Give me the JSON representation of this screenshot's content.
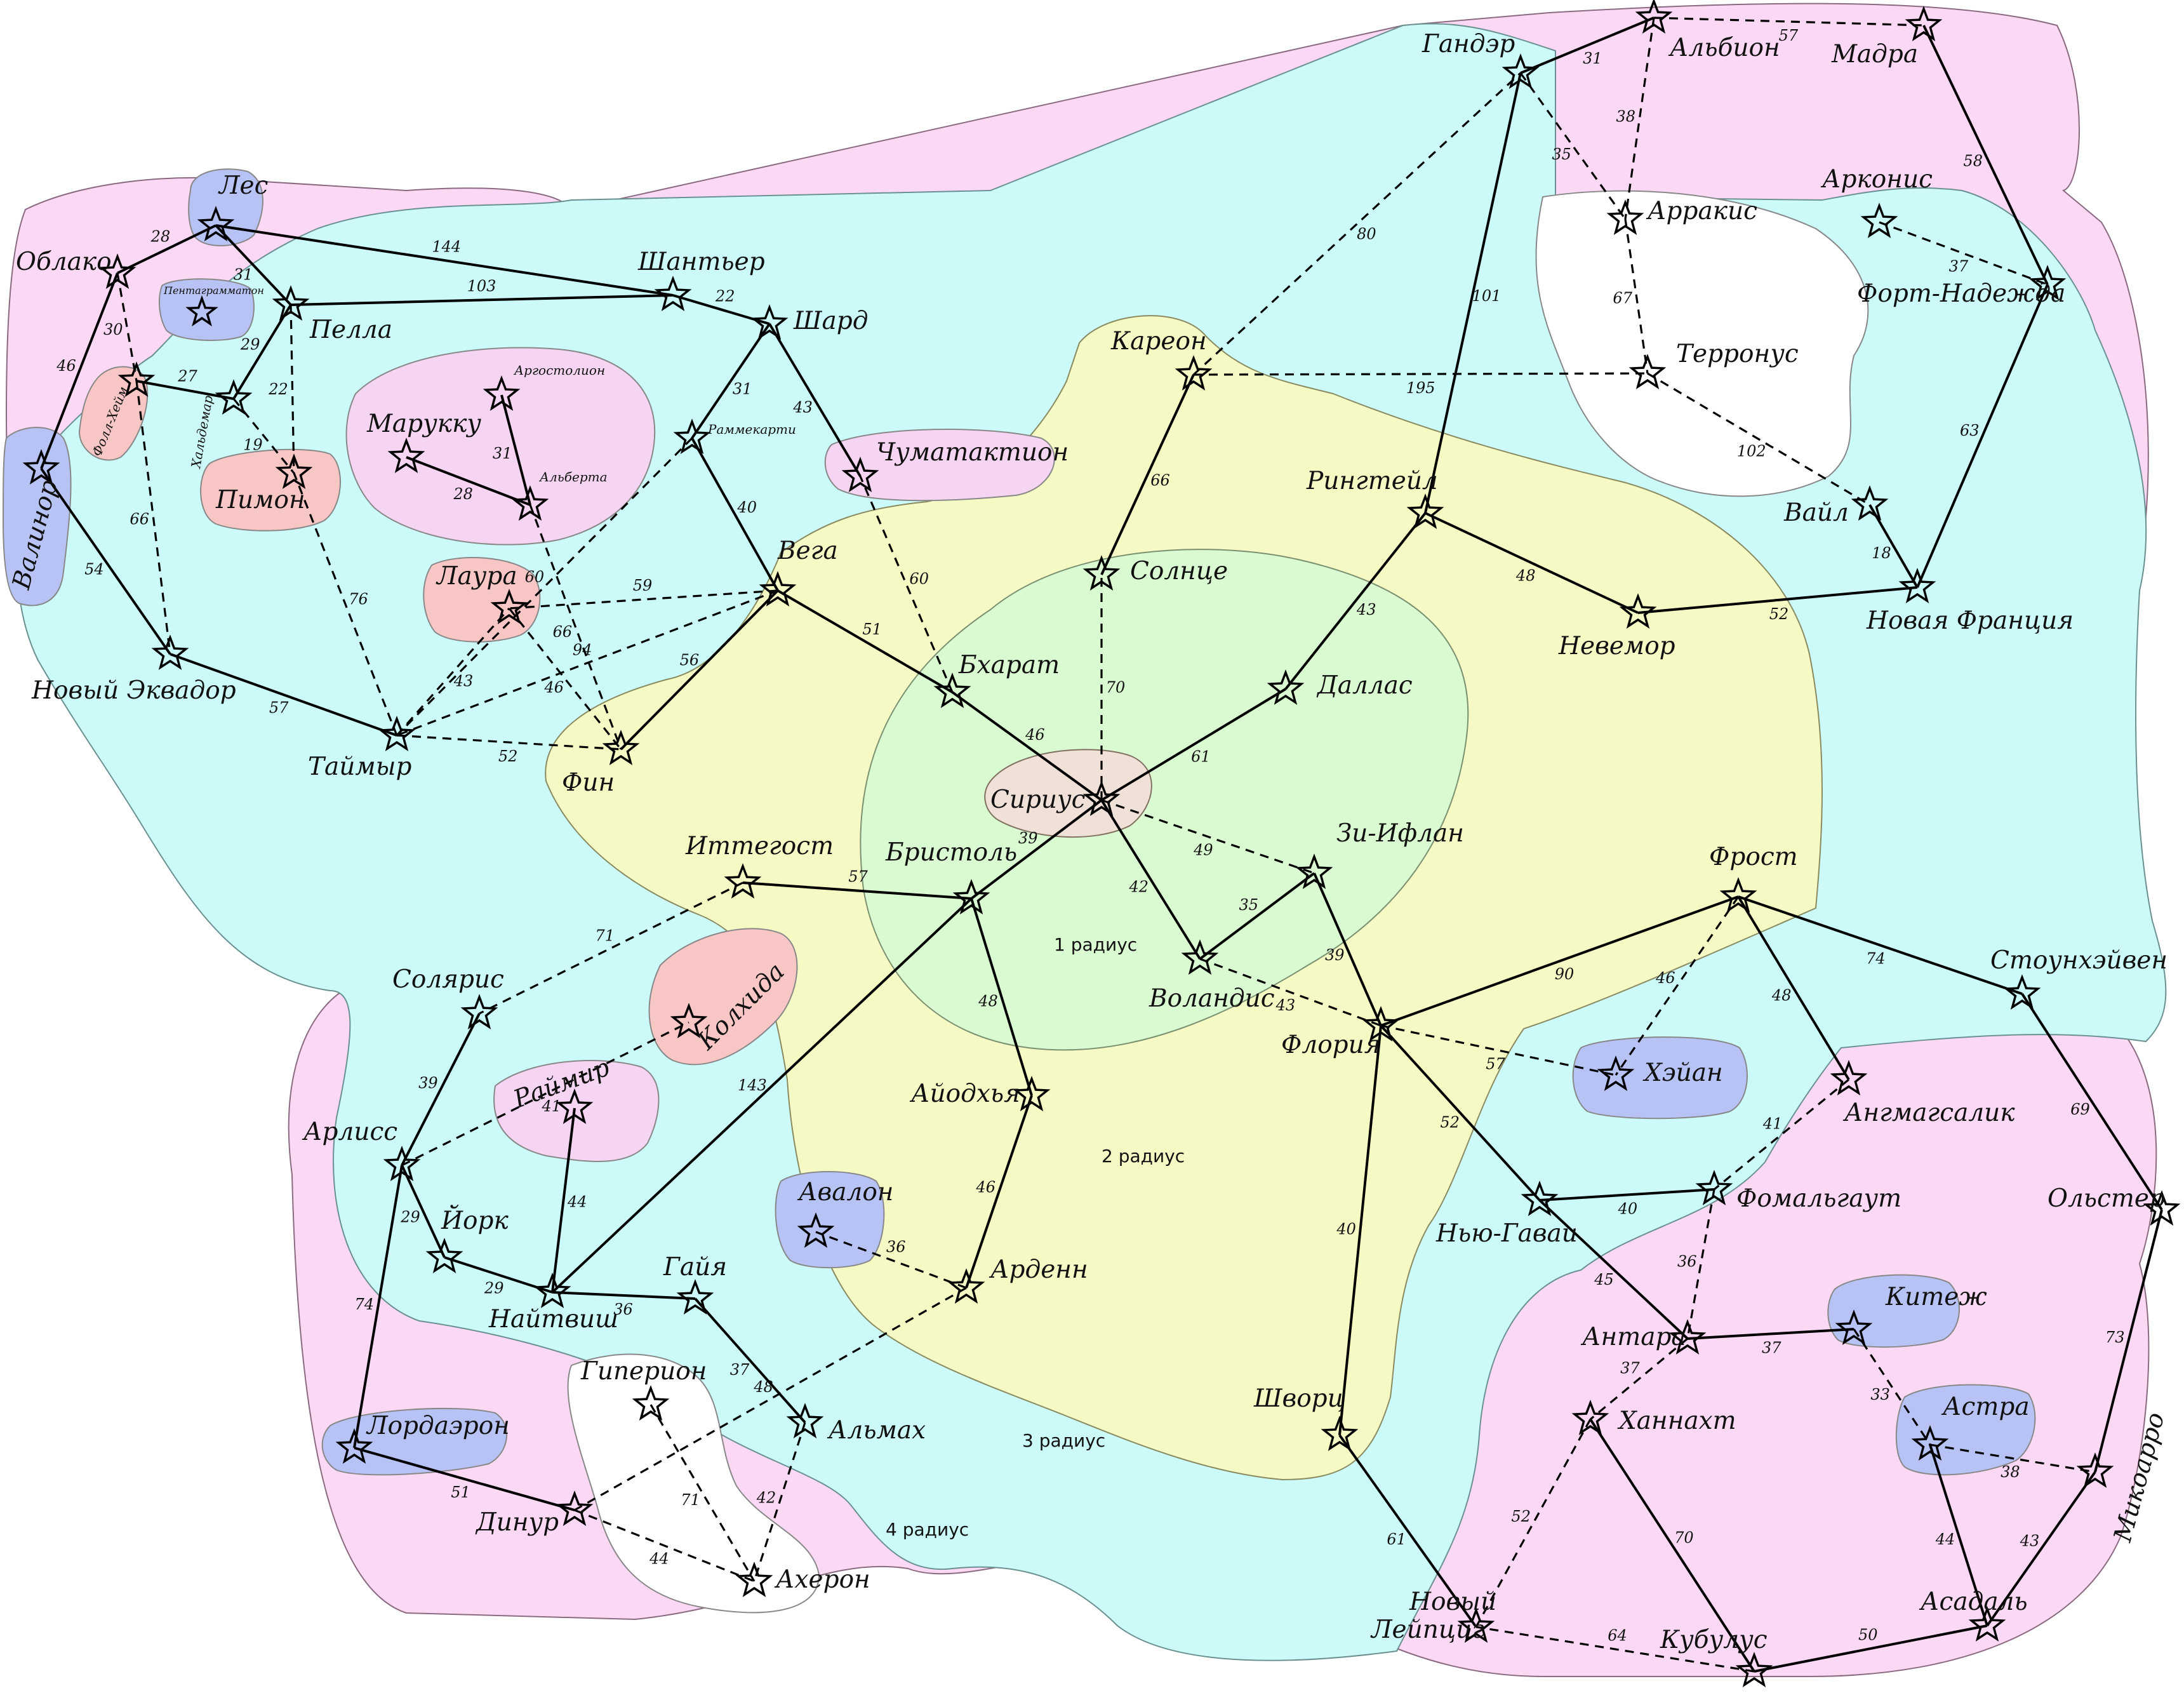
{
  "colors": {
    "outer": "#fbd9f4",
    "region3": "#ccfaf9",
    "region2": "#f5fac5",
    "region1": "#dafad1",
    "core": "#f0e1d8",
    "blue": "#b7c2f5",
    "salmon": "#f9c6c6",
    "white": "#ffffff",
    "lilac": "#f5d5f1",
    "line": "#000000"
  },
  "zones": {
    "r1": "1 радиус",
    "r2": "2 радиус",
    "r3": "3 радиус",
    "r4": "4 радиус"
  },
  "systems": {
    "sirius": "Сириус",
    "solnce": "Солнце",
    "bharat": "Бхарат",
    "dallas": "Даллас",
    "ziiflan": "Зи-Ифлан",
    "volandis": "Воландис",
    "bristol": "Бристоль",
    "vega": "Вега",
    "itegost": "Иттегост",
    "kareon": "Кареон",
    "ringteil": "Рингтейл",
    "gander": "Гандэр",
    "albion": "Альбион",
    "madra": "Мадра",
    "arrakis": "Арракис",
    "arkonis": "Арконис",
    "terronus": "Терронус",
    "vail": "Вайл",
    "fortnadezhda": "Форт-Надежда",
    "novfrancia": "Новая Франция",
    "nevemor": "Невемор",
    "shantyer": "Шантьер",
    "shard": "Шард",
    "chumatakt": "Чуматактион",
    "rammekarti": "Раммекарти",
    "les": "Лес",
    "oblako": "Облако",
    "pella": "Пелла",
    "pentagr": "Пентаграмматон",
    "folheim": "Фолл-Хейм",
    "haldemar": "Хальдемар",
    "pimon": "Пимон",
    "valinor": "Валинор",
    "novekvador": "Новый Эквадор",
    "taimyr": "Таймыр",
    "fin": "Фин",
    "laura": "Лаура",
    "marukku": "Марукку",
    "argostolion": "Аргостолион",
    "alberta": "Альберта",
    "solaris": "Солярис",
    "arliss": "Арлисс",
    "kolhida": "Колхида",
    "raitmir": "Раймир",
    "york": "Йорк",
    "naitvish": "Найтвиш",
    "gaiya": "Гайя",
    "lordaeron": "Лордаэрон",
    "dinur": "Динур",
    "giperion": "Гиперион",
    "aheron": "Ахерон",
    "almah": "Альмах",
    "avalon": "Авалон",
    "arden": "Арденн",
    "aiodhya": "Айодхья",
    "frost": "Фрост",
    "floriya": "Флория",
    "heyan": "Хэйан",
    "stounheiven": "Стоунхэйвен",
    "angmagsalik": "Ангмагсалик",
    "nyugavai": "Нью-Гаваи",
    "fomalgaut": "Фомальгаут",
    "olster": "Ольстер",
    "kitezh": "Китеж",
    "antara": "Антара",
    "hannaht": "Ханнахт",
    "astra": "Астра",
    "mikovarro": "Микоарро",
    "shvorc": "Шворц",
    "novleipcig": "Новый Лейпциг",
    "asadal": "Асадаль",
    "kubulus": "Кубулус"
  },
  "routes": [
    {
      "a": "sirius",
      "b": "bharat",
      "d": "46",
      "t": "s"
    },
    {
      "a": "sirius",
      "b": "dallas",
      "d": "61",
      "t": "s"
    },
    {
      "a": "sirius",
      "b": "volandis",
      "d": "42",
      "t": "s"
    },
    {
      "a": "sirius",
      "b": "bristol",
      "d": "39",
      "t": "s"
    },
    {
      "a": "sirius",
      "b": "solnce",
      "d": "70",
      "t": "d"
    },
    {
      "a": "sirius",
      "b": "ziiflan",
      "d": "49",
      "t": "d"
    },
    {
      "a": "bharat",
      "b": "vega",
      "d": "51",
      "t": "s"
    },
    {
      "a": "bharat",
      "b": "chumatakt",
      "d": "60",
      "t": "d"
    },
    {
      "a": "solnce",
      "b": "kareon",
      "d": "66",
      "t": "s"
    },
    {
      "a": "kareon",
      "b": "gander",
      "d": "80",
      "t": "d"
    },
    {
      "a": "kareon",
      "b": "terronus",
      "d": "195",
      "t": "d"
    },
    {
      "a": "dallas",
      "b": "ringteil",
      "d": "43",
      "t": "s"
    },
    {
      "a": "ringteil",
      "b": "gander",
      "d": "101",
      "t": "s"
    },
    {
      "a": "ringteil",
      "b": "nevemor",
      "d": "48",
      "t": "s"
    },
    {
      "a": "nevemor",
      "b": "novfrancia",
      "d": "52",
      "t": "s"
    },
    {
      "a": "gander",
      "b": "albion",
      "d": "31",
      "t": "s"
    },
    {
      "a": "gander",
      "b": "arrakis",
      "d": "35",
      "t": "d"
    },
    {
      "a": "albion",
      "b": "arrakis",
      "d": "38",
      "t": "d"
    },
    {
      "a": "albion",
      "b": "madra",
      "d": "57",
      "t": "d"
    },
    {
      "a": "madra",
      "b": "fortnadezhda",
      "d": "58",
      "t": "s"
    },
    {
      "a": "arkonis",
      "b": "fortnadezhda",
      "d": "37",
      "t": "d"
    },
    {
      "a": "fortnadezhda",
      "b": "novfrancia",
      "d": "63",
      "t": "s"
    },
    {
      "a": "arrakis",
      "b": "terronus",
      "d": "67",
      "t": "d"
    },
    {
      "a": "terronus",
      "b": "vail",
      "d": "102",
      "t": "d"
    },
    {
      "a": "vail",
      "b": "novfrancia",
      "d": "18",
      "t": "s"
    },
    {
      "a": "ziiflan",
      "b": "volandis",
      "d": "35",
      "t": "s"
    },
    {
      "a": "ziiflan",
      "b": "floriya",
      "d": "39",
      "t": "s"
    },
    {
      "a": "volandis",
      "b": "floriya",
      "d": "43",
      "t": "d"
    },
    {
      "a": "bristol",
      "b": "itegost",
      "d": "57",
      "t": "s"
    },
    {
      "a": "bristol",
      "b": "aiodhya",
      "d": "48",
      "t": "s"
    },
    {
      "a": "bristol",
      "b": "naitvish",
      "d": "143",
      "t": "s"
    },
    {
      "a": "aiodhya",
      "b": "arden",
      "d": "46",
      "t": "s"
    },
    {
      "a": "arden",
      "b": "avalon",
      "d": "36",
      "t": "d"
    },
    {
      "a": "arden",
      "b": "dinur",
      "d": "48",
      "t": "d"
    },
    {
      "a": "vega",
      "b": "rammekarti",
      "d": "40",
      "t": "s"
    },
    {
      "a": "vega",
      "b": "fin",
      "d": "56",
      "t": "s"
    },
    {
      "a": "vega",
      "b": "laura",
      "d": "59",
      "t": "d"
    },
    {
      "a": "vega",
      "b": "taimyr",
      "d": "94",
      "t": "d"
    },
    {
      "a": "rammekarti",
      "b": "shard",
      "d": "31",
      "t": "s"
    },
    {
      "a": "rammekarti",
      "b": "taimyr",
      "d": "60",
      "t": "d"
    },
    {
      "a": "shard",
      "b": "shantyer",
      "d": "22",
      "t": "s"
    },
    {
      "a": "shard",
      "b": "chumatakt",
      "d": "43",
      "t": "s"
    },
    {
      "a": "shantyer",
      "b": "les",
      "d": "144",
      "t": "s"
    },
    {
      "a": "shantyer",
      "b": "pella",
      "d": "103",
      "t": "s"
    },
    {
      "a": "les",
      "b": "oblako",
      "d": "28",
      "t": "s"
    },
    {
      "a": "les",
      "b": "pella",
      "d": "31",
      "t": "s"
    },
    {
      "a": "pella",
      "b": "haldemar",
      "d": "29",
      "t": "s"
    },
    {
      "a": "pella",
      "b": "pimon",
      "d": "22",
      "t": "d"
    },
    {
      "a": "haldemar",
      "b": "folheim",
      "d": "27",
      "t": "s"
    },
    {
      "a": "haldemar",
      "b": "pimon",
      "d": "19",
      "t": "d"
    },
    {
      "a": "oblako",
      "b": "folheim",
      "d": "30",
      "t": "d"
    },
    {
      "a": "oblako",
      "b": "valinor",
      "d": "46",
      "t": "s"
    },
    {
      "a": "folheim",
      "b": "novekvador",
      "d": "66",
      "t": "d"
    },
    {
      "a": "valinor",
      "b": "novekvador",
      "d": "54",
      "t": "s"
    },
    {
      "a": "novekvador",
      "b": "taimyr",
      "d": "57",
      "t": "s"
    },
    {
      "a": "taimyr",
      "b": "pimon",
      "d": "76",
      "t": "d"
    },
    {
      "a": "taimyr",
      "b": "laura",
      "d": "43",
      "t": "d"
    },
    {
      "a": "taimyr",
      "b": "fin",
      "d": "52",
      "t": "d"
    },
    {
      "a": "laura",
      "b": "fin",
      "d": "46",
      "t": "d"
    },
    {
      "a": "alberta",
      "b": "fin",
      "d": "66",
      "t": "d"
    },
    {
      "a": "argostolion",
      "b": "alberta",
      "d": "31",
      "t": "s"
    },
    {
      "a": "marukku",
      "b": "alberta",
      "d": "28",
      "t": "s"
    },
    {
      "a": "itegost",
      "b": "solaris",
      "d": "71",
      "t": "d"
    },
    {
      "a": "solaris",
      "b": "arliss",
      "d": "39",
      "t": "s"
    },
    {
      "a": "arliss",
      "b": "kolhida",
      "d": "41",
      "t": "d"
    },
    {
      "a": "arliss",
      "b": "york",
      "d": "29",
      "t": "s"
    },
    {
      "a": "arliss",
      "b": "lordaeron",
      "d": "74",
      "t": "s"
    },
    {
      "a": "york",
      "b": "naitvish",
      "d": "29",
      "t": "s"
    },
    {
      "a": "naitvish",
      "b": "raitmir",
      "d": "44",
      "t": "s"
    },
    {
      "a": "naitvish",
      "b": "gaiya",
      "d": "36",
      "t": "s"
    },
    {
      "a": "gaiya",
      "b": "almah",
      "d": "37",
      "t": "s"
    },
    {
      "a": "lordaeron",
      "b": "dinur",
      "d": "51",
      "t": "s"
    },
    {
      "a": "dinur",
      "b": "aheron",
      "d": "44",
      "t": "d"
    },
    {
      "a": "giperion",
      "b": "aheron",
      "d": "71",
      "t": "d"
    },
    {
      "a": "almah",
      "b": "aheron",
      "d": "42",
      "t": "d"
    },
    {
      "a": "floriya",
      "b": "frost",
      "d": "90",
      "t": "s"
    },
    {
      "a": "floriya",
      "b": "heyan",
      "d": "57",
      "t": "d"
    },
    {
      "a": "floriya",
      "b": "nyugavai",
      "d": "52",
      "t": "s"
    },
    {
      "a": "floriya",
      "b": "shvorc",
      "d": "40",
      "t": "s"
    },
    {
      "a": "frost",
      "b": "heyan",
      "d": "46",
      "t": "d"
    },
    {
      "a": "frost",
      "b": "angmagsalik",
      "d": "48",
      "t": "s"
    },
    {
      "a": "frost",
      "b": "stounheiven",
      "d": "74",
      "t": "s"
    },
    {
      "a": "stounheiven",
      "b": "olster",
      "d": "69",
      "t": "s"
    },
    {
      "a": "olster",
      "b": "mikovarro",
      "d": "73",
      "t": "s"
    },
    {
      "a": "angmagsalik",
      "b": "fomalgaut",
      "d": "41",
      "t": "d"
    },
    {
      "a": "nyugavai",
      "b": "fomalgaut",
      "d": "40",
      "t": "s"
    },
    {
      "a": "nyugavai",
      "b": "antara",
      "d": "45",
      "t": "s"
    },
    {
      "a": "fomalgaut",
      "b": "antara",
      "d": "36",
      "t": "d"
    },
    {
      "a": "antara",
      "b": "kitezh",
      "d": "37",
      "t": "s"
    },
    {
      "a": "antara",
      "b": "hannaht",
      "d": "37",
      "t": "d"
    },
    {
      "a": "kitezh",
      "b": "astra",
      "d": "33",
      "t": "d"
    },
    {
      "a": "astra",
      "b": "mikovarro",
      "d": "38",
      "t": "d"
    },
    {
      "a": "astra",
      "b": "asadal",
      "d": "44",
      "t": "s"
    },
    {
      "a": "mikovarro",
      "b": "asadal",
      "d": "43",
      "t": "s"
    },
    {
      "a": "asadal",
      "b": "kubulus",
      "d": "50",
      "t": "s"
    },
    {
      "a": "kubulus",
      "b": "hannaht",
      "d": "70",
      "t": "s"
    },
    {
      "a": "kubulus",
      "b": "novleipcig",
      "d": "64",
      "t": "d"
    },
    {
      "a": "hannaht",
      "b": "novleipcig",
      "d": "52",
      "t": "d"
    },
    {
      "a": "shvorc",
      "b": "novleipcig",
      "d": "61",
      "t": "s"
    }
  ]
}
